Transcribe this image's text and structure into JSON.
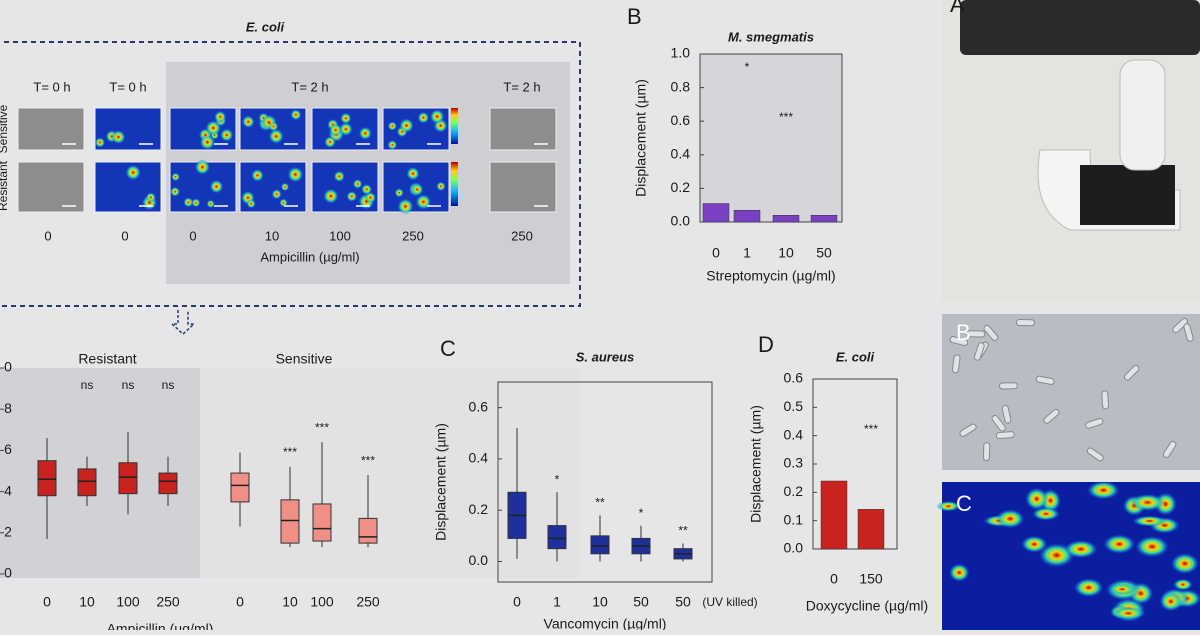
{
  "figure": {
    "top_title": "E. coli",
    "time_labels": [
      "T= 0 h",
      "T= 0 h",
      "T= 2 h",
      "T= 2 h"
    ],
    "row_labels": [
      "Sensitive",
      "Resistant"
    ],
    "conc_labels": [
      "0",
      "0",
      "0",
      "10",
      "100",
      "250",
      "250"
    ],
    "top_xlabel": "Ampicillin (µg/ml)",
    "panel_letters": [
      "B",
      "C",
      "D"
    ],
    "photo_letters": [
      "A",
      "B",
      "C"
    ]
  },
  "chart_data": [
    {
      "type": "box",
      "title": null,
      "xlabel": "Ampicillin (µg/ml)",
      "ylim": [
        0,
        1
      ],
      "yticks": [
        0,
        {
          "value": 0.2,
          "label": "2"
        },
        {
          "value": 0.4,
          "label": "4"
        },
        {
          "value": 0.6,
          "label": "6"
        },
        {
          "value": 0.8,
          "label": "8"
        },
        {
          "value": 1,
          "label": "0"
        }
      ],
      "groups": [
        {
          "name": "Resistant",
          "color": "#c8231e",
          "categories": [
            "0",
            "10",
            "100",
            "250"
          ],
          "min": [
            0.17,
            0.33,
            0.29,
            0.33
          ],
          "q1": [
            0.38,
            0.38,
            0.39,
            0.39
          ],
          "median": [
            0.46,
            0.45,
            0.47,
            0.45
          ],
          "q3": [
            0.55,
            0.51,
            0.54,
            0.49
          ],
          "max": [
            0.66,
            0.57,
            0.69,
            0.57
          ],
          "annotations": [
            null,
            "ns",
            "ns",
            "ns"
          ]
        },
        {
          "name": "Sensitive",
          "color": "#ef8f86",
          "categories": [
            "0",
            "10",
            "100",
            "250"
          ],
          "min": [
            0.23,
            0.13,
            0.13,
            0.13
          ],
          "q1": [
            0.35,
            0.15,
            0.16,
            0.15
          ],
          "median": [
            0.43,
            0.26,
            0.22,
            0.18
          ],
          "q3": [
            0.49,
            0.36,
            0.34,
            0.27
          ],
          "max": [
            0.59,
            0.52,
            0.64,
            0.48
          ],
          "annotations": [
            null,
            "***",
            "***",
            "***"
          ]
        }
      ]
    },
    {
      "type": "bar",
      "title": "M. smegmatis",
      "xlabel": "Streptomycin (µg/ml)",
      "ylabel": "Displacement  (µm)",
      "categories": [
        "0",
        "1",
        "10",
        "50"
      ],
      "values": [
        0.11,
        0.07,
        0.04,
        0.04
      ],
      "color": "#7b3fc4",
      "annotations": [
        null,
        "*",
        "***",
        null
      ],
      "ylim": [
        0,
        1
      ],
      "yticks": [
        {
          "value": 0,
          "label": "0.0"
        },
        0.2,
        0.4,
        0.6,
        0.8,
        {
          "value": 1,
          "label": "1.0"
        }
      ]
    },
    {
      "type": "box",
      "title": "S. aureus",
      "xlabel": "Vancomycin (µg/ml)",
      "ylabel": "Displacement (µm)",
      "note": "(UV killed)",
      "ylim": [
        -0.08,
        0.7
      ],
      "yticks": [
        {
          "value": 0,
          "label": "0.0"
        },
        0.2,
        0.4,
        0.6
      ],
      "groups": [
        {
          "name": null,
          "color": "#1f2f9c",
          "categories": [
            "0",
            "1",
            "10",
            "50",
            "50"
          ],
          "min": [
            0.01,
            0.0,
            0.0,
            0.0,
            0.0
          ],
          "q1": [
            0.09,
            0.05,
            0.03,
            0.03,
            0.01
          ],
          "median": [
            0.18,
            0.09,
            0.06,
            0.06,
            0.03
          ],
          "q3": [
            0.27,
            0.14,
            0.1,
            0.09,
            0.05
          ],
          "max": [
            0.52,
            0.27,
            0.18,
            0.14,
            0.07
          ],
          "annotations": [
            null,
            "*",
            "**",
            "*",
            "**"
          ]
        }
      ]
    },
    {
      "type": "bar",
      "title": "E. coli",
      "xlabel": "Doxycycline (µg/ml)",
      "ylabel": "Displacement (µm)",
      "categories": [
        "0",
        "150"
      ],
      "values": [
        0.24,
        0.14
      ],
      "color": "#c8231e",
      "annotations": [
        null,
        "***"
      ],
      "ylim": [
        0,
        0.6
      ],
      "yticks": [
        {
          "value": 0,
          "label": "0.0"
        },
        0.1,
        0.2,
        0.3,
        0.4,
        0.5,
        0.6
      ]
    }
  ]
}
